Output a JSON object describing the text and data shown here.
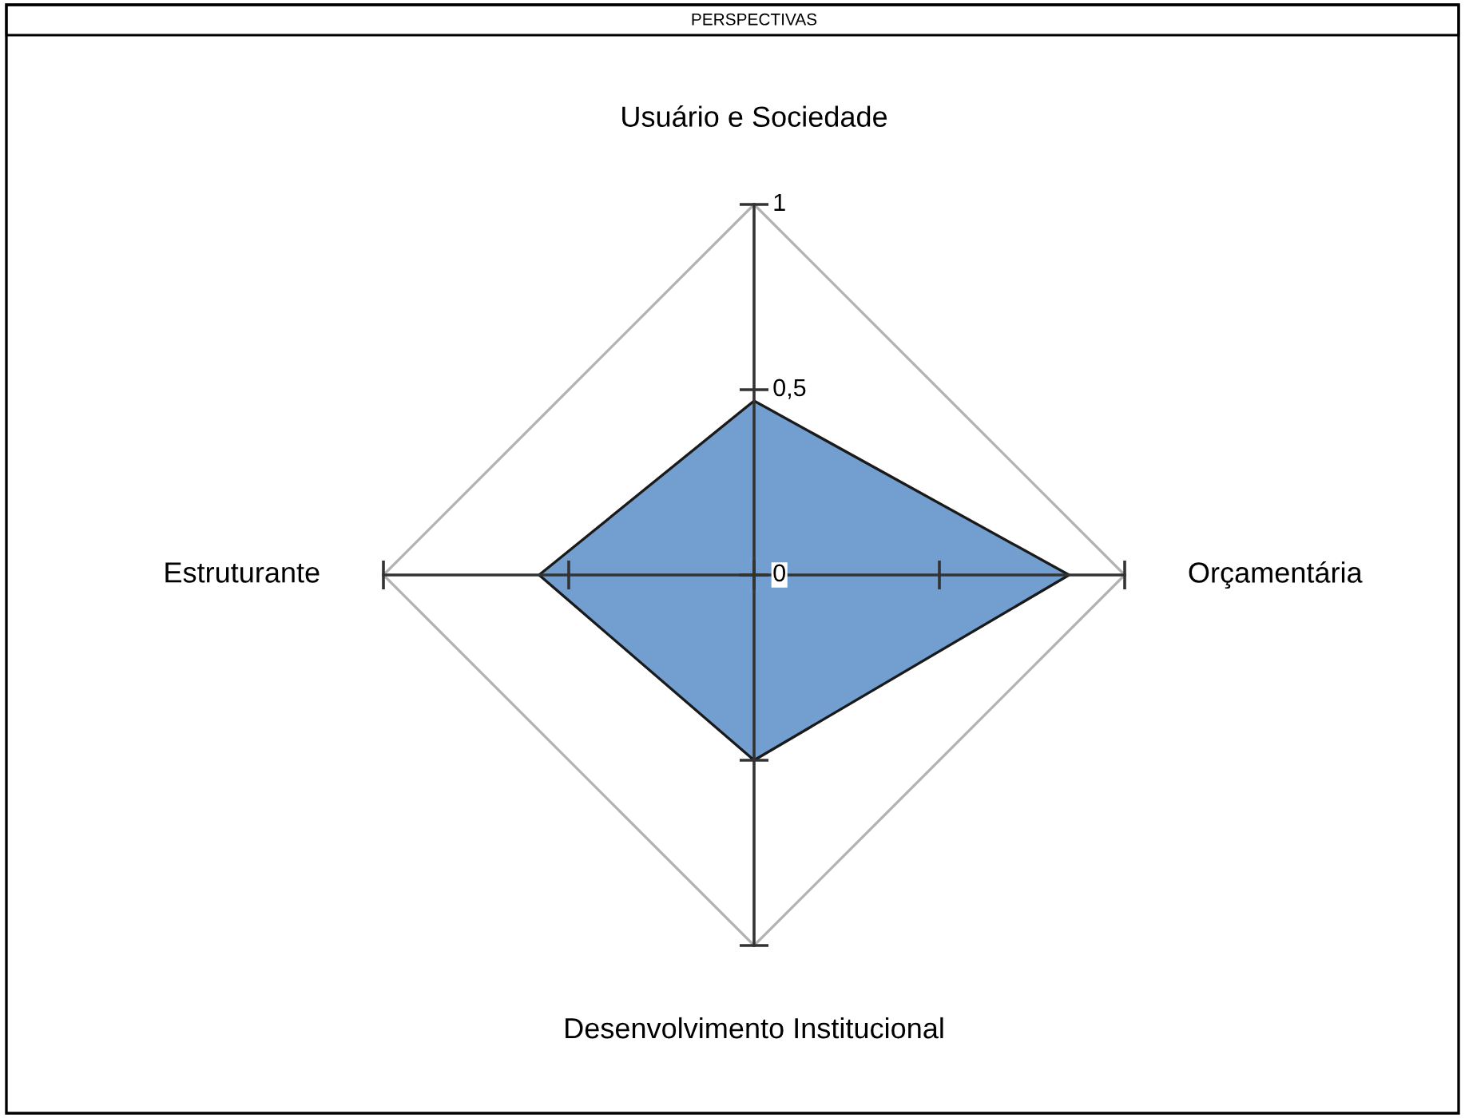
{
  "chart_data": {
    "type": "radar",
    "title": "PERSPECTIVAS",
    "categories": [
      "Usuário e Sociedade",
      "Orçamentária",
      "Desenvolvimento Institucional",
      "Estruturante"
    ],
    "series": [
      {
        "color": "#729fcf",
        "values": [
          0.47,
          0.85,
          0.5,
          0.58
        ]
      }
    ],
    "ylim": [
      0,
      1
    ],
    "yticks": [
      0,
      {
        "value": 0.5,
        "label": "0,5"
      },
      1
    ],
    "grid": true
  }
}
